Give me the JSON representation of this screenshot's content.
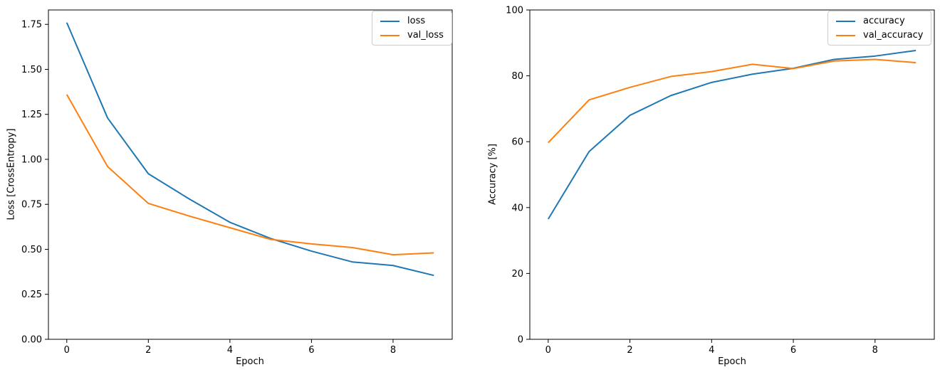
{
  "figure": {
    "background": "#ffffff",
    "accent_colors": {
      "blue": "#1f77b4",
      "orange": "#ff7f0e"
    }
  },
  "chart_data": [
    {
      "type": "line",
      "title": "",
      "xlabel": "Epoch",
      "ylabel": "Loss [CrossEntropy]",
      "x": [
        0,
        1,
        2,
        3,
        4,
        5,
        6,
        7,
        8,
        9
      ],
      "series": [
        {
          "name": "loss",
          "color": "#1f77b4",
          "values": [
            1.76,
            1.23,
            0.92,
            0.78,
            0.65,
            0.56,
            0.49,
            0.43,
            0.41,
            0.355
          ]
        },
        {
          "name": "val_loss",
          "color": "#ff7f0e",
          "values": [
            1.36,
            0.96,
            0.755,
            0.685,
            0.62,
            0.555,
            0.53,
            0.51,
            0.47,
            0.48
          ]
        }
      ],
      "xlim": [
        -0.45,
        9.45
      ],
      "ylim": [
        0,
        1.83
      ],
      "xticks": [
        0,
        2,
        4,
        6,
        8
      ],
      "xtick_labels": [
        "0",
        "2",
        "4",
        "6",
        "8"
      ],
      "yticks": [
        0,
        0.25,
        0.5,
        0.75,
        1.0,
        1.25,
        1.5,
        1.75
      ],
      "ytick_labels": [
        "0.00",
        "0.25",
        "0.50",
        "0.75",
        "1.00",
        "1.25",
        "1.50",
        "1.75"
      ],
      "grid": false,
      "legend": {
        "position": "upper right",
        "entries": [
          "loss",
          "val_loss"
        ]
      }
    },
    {
      "type": "line",
      "title": "",
      "xlabel": "Epoch",
      "ylabel": "Accuracy [%]",
      "x": [
        0,
        1,
        2,
        3,
        4,
        5,
        6,
        7,
        8,
        9
      ],
      "series": [
        {
          "name": "accuracy",
          "color": "#1f77b4",
          "values": [
            36.5,
            57,
            68,
            74,
            78,
            80.5,
            82.3,
            85,
            86,
            87.7
          ]
        },
        {
          "name": "val_accuracy",
          "color": "#ff7f0e",
          "values": [
            59.7,
            72.7,
            76.5,
            79.8,
            81.3,
            83.5,
            82.2,
            84.5,
            85,
            84
          ]
        }
      ],
      "xlim": [
        -0.45,
        9.45
      ],
      "ylim": [
        0,
        100
      ],
      "xticks": [
        0,
        2,
        4,
        6,
        8
      ],
      "xtick_labels": [
        "0",
        "2",
        "4",
        "6",
        "8"
      ],
      "yticks": [
        0,
        20,
        40,
        60,
        80,
        100
      ],
      "ytick_labels": [
        "0",
        "20",
        "40",
        "60",
        "80",
        "100"
      ],
      "grid": false,
      "legend": {
        "position": "upper right",
        "entries": [
          "accuracy",
          "val_accuracy"
        ]
      }
    }
  ]
}
